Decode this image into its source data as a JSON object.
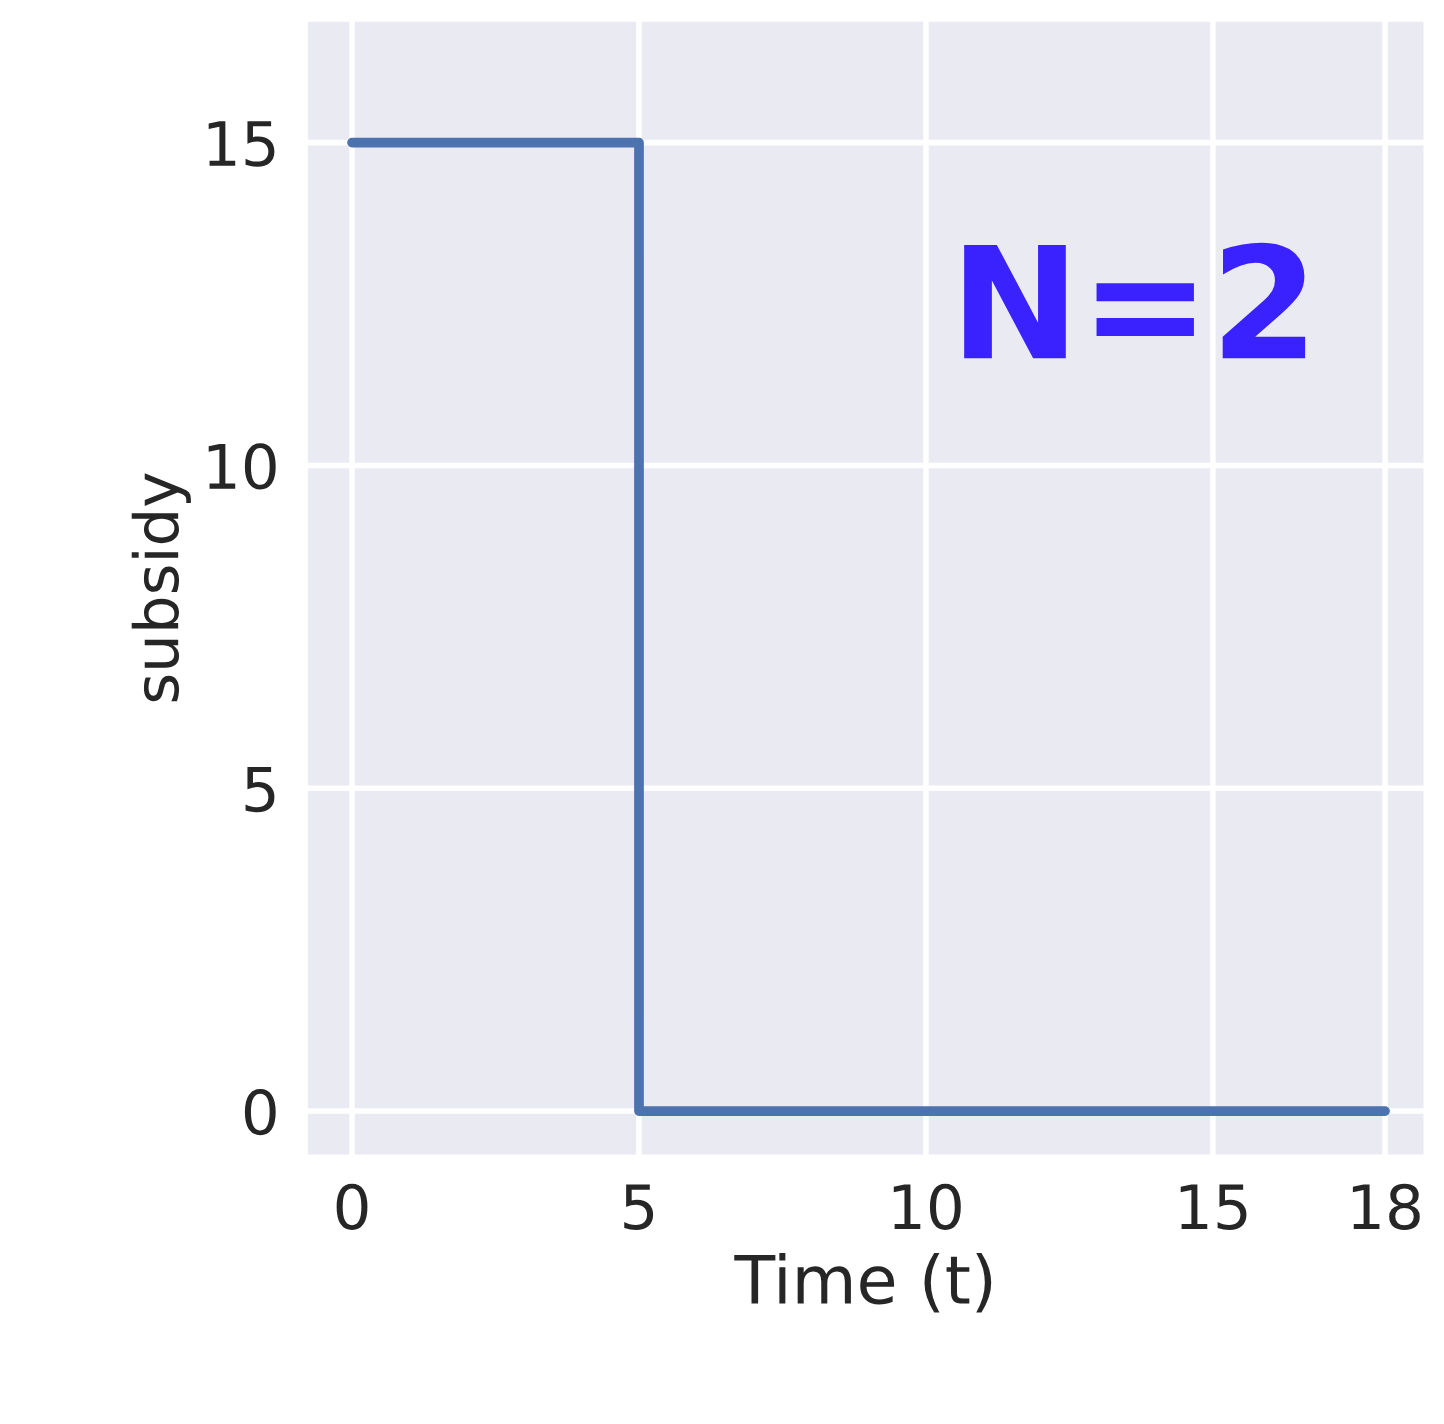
{
  "chart_data": {
    "type": "step",
    "xlabel": "Time (t)",
    "ylabel": "subsidy",
    "x": [
      0,
      5,
      18
    ],
    "series": [
      {
        "color": "#4c72b0",
        "values": [
          15,
          0,
          0
        ]
      }
    ],
    "xlim": [
      -0.8,
      18.7
    ],
    "ylim": [
      -0.7,
      16.9
    ],
    "xticks": [
      0,
      5,
      10,
      15,
      18
    ],
    "yticks": [
      0,
      5,
      10,
      15
    ],
    "grid": true,
    "marker": "none",
    "line_style": "solid",
    "annotations": [
      "N=2"
    ]
  }
}
